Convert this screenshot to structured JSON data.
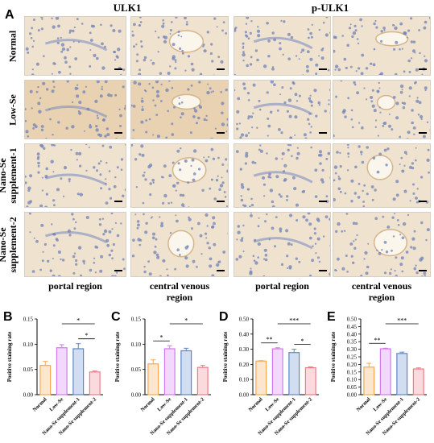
{
  "figure": {
    "panel_a_letter": "A",
    "column_headers": [
      "ULK1",
      "p-ULK1"
    ],
    "row_labels": [
      [
        "Normal"
      ],
      [
        "Low-Se"
      ],
      [
        "Nano-Se",
        "supplement-1"
      ],
      [
        "Nano-Se",
        "supplement-2"
      ]
    ],
    "region_labels": [
      [
        "portal region"
      ],
      [
        "central venous",
        "region"
      ],
      [
        "portal region"
      ],
      [
        "central venous",
        "region"
      ]
    ]
  },
  "colors": {
    "normal": "#f5a94f",
    "low_se": "#d277f0",
    "nano1": "#5b86c8",
    "nano2": "#ef7a86",
    "tissue": "#efe2cf",
    "nuclei": "#6f82b8",
    "vessel": "#fbf6ec"
  },
  "chart_data": [
    {
      "type": "bar",
      "panel": "B",
      "ylabel": "Positive staining rate",
      "ylim": [
        0,
        0.15
      ],
      "yticks": [
        "0.00",
        "0.05",
        "0.10",
        "0.15"
      ],
      "categories": [
        "Normal",
        "Low-Se",
        "Nano-Se supplement-1",
        "Nano-Se supplement-2"
      ],
      "values": [
        0.058,
        0.093,
        0.091,
        0.045
      ],
      "errors": [
        0.008,
        0.006,
        0.01,
        0.002
      ],
      "significance": [
        {
          "from": 1,
          "to": 3,
          "label": "*"
        },
        {
          "from": 2,
          "to": 3,
          "label": "*"
        }
      ]
    },
    {
      "type": "bar",
      "panel": "C",
      "ylabel": "Positive staining rate",
      "ylim": [
        0,
        0.15
      ],
      "yticks": [
        "0.00",
        "0.05",
        "0.10",
        "0.15"
      ],
      "categories": [
        "Normal",
        "Low-Se",
        "Nano-Se supplement-1",
        "Nano-Se supplement-2"
      ],
      "values": [
        0.061,
        0.091,
        0.087,
        0.054
      ],
      "errors": [
        0.008,
        0.006,
        0.005,
        0.004
      ],
      "significance": [
        {
          "from": 0,
          "to": 1,
          "label": "*"
        },
        {
          "from": 1,
          "to": 3,
          "label": "*"
        }
      ]
    },
    {
      "type": "bar",
      "panel": "D",
      "ylabel": "Positive staining rate",
      "ylim": [
        0,
        0.5
      ],
      "yticks": [
        "0.00",
        "0.10",
        "0.20",
        "0.30",
        "0.40",
        "0.50"
      ],
      "categories": [
        "Normal",
        "Low-Se",
        "Nano-Se supplement-1",
        "Nano-Se supplement-2"
      ],
      "values": [
        0.222,
        0.303,
        0.278,
        0.178
      ],
      "errors": [
        0.003,
        0.007,
        0.022,
        0.006
      ],
      "significance": [
        {
          "from": 0,
          "to": 1,
          "label": "**"
        },
        {
          "from": 1,
          "to": 3,
          "label": "***"
        },
        {
          "from": 2,
          "to": 3,
          "label": "*"
        }
      ]
    },
    {
      "type": "bar",
      "panel": "E",
      "ylabel": "Positive staining rate",
      "ylim": [
        0,
        0.5
      ],
      "yticks": [
        "0.00",
        "0.05",
        "0.10",
        "0.15",
        "0.20",
        "0.25",
        "0.30",
        "0.35",
        "0.40",
        "0.45",
        "0.50"
      ],
      "categories": [
        "Normal",
        "Low-Se",
        "Nano-Se supplement-1",
        "Nano-Se supplement-2"
      ],
      "values": [
        0.182,
        0.303,
        0.272,
        0.17
      ],
      "errors": [
        0.025,
        0.004,
        0.009,
        0.007
      ],
      "significance": [
        {
          "from": 0,
          "to": 1,
          "label": "**"
        },
        {
          "from": 1,
          "to": 3,
          "label": "***"
        }
      ]
    }
  ]
}
